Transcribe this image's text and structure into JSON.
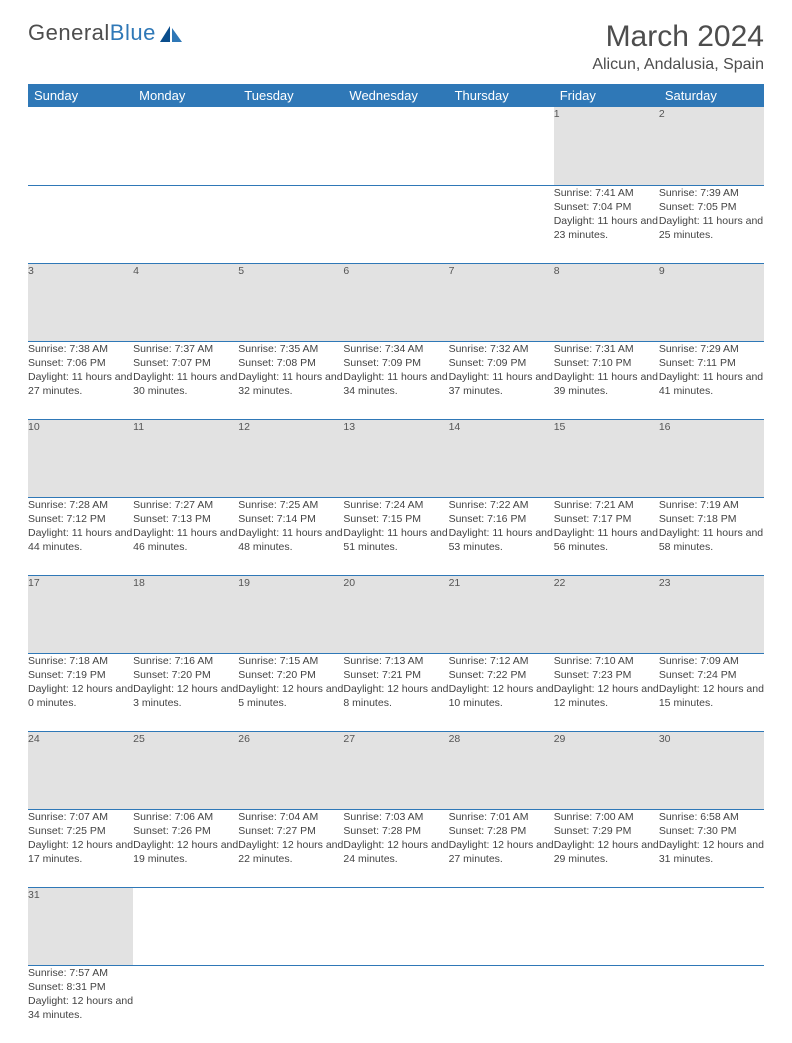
{
  "logo": {
    "text1": "General",
    "text2": "Blue"
  },
  "title": "March 2024",
  "location": "Alicun, Andalusia, Spain",
  "colors": {
    "header_bg": "#2f78b7",
    "header_fg": "#ffffff",
    "daynum_bg": "#e2e2e2",
    "row_divider": "#2f78b7",
    "text": "#434343",
    "logo_gray": "#4d4d4d",
    "logo_blue": "#2f78b7"
  },
  "weekdays": [
    "Sunday",
    "Monday",
    "Tuesday",
    "Wednesday",
    "Thursday",
    "Friday",
    "Saturday"
  ],
  "weeks": [
    [
      null,
      null,
      null,
      null,
      null,
      {
        "n": "1",
        "sr": "7:41 AM",
        "ss": "7:04 PM",
        "dl": "11 hours and 23 minutes."
      },
      {
        "n": "2",
        "sr": "7:39 AM",
        "ss": "7:05 PM",
        "dl": "11 hours and 25 minutes."
      }
    ],
    [
      {
        "n": "3",
        "sr": "7:38 AM",
        "ss": "7:06 PM",
        "dl": "11 hours and 27 minutes."
      },
      {
        "n": "4",
        "sr": "7:37 AM",
        "ss": "7:07 PM",
        "dl": "11 hours and 30 minutes."
      },
      {
        "n": "5",
        "sr": "7:35 AM",
        "ss": "7:08 PM",
        "dl": "11 hours and 32 minutes."
      },
      {
        "n": "6",
        "sr": "7:34 AM",
        "ss": "7:09 PM",
        "dl": "11 hours and 34 minutes."
      },
      {
        "n": "7",
        "sr": "7:32 AM",
        "ss": "7:09 PM",
        "dl": "11 hours and 37 minutes."
      },
      {
        "n": "8",
        "sr": "7:31 AM",
        "ss": "7:10 PM",
        "dl": "11 hours and 39 minutes."
      },
      {
        "n": "9",
        "sr": "7:29 AM",
        "ss": "7:11 PM",
        "dl": "11 hours and 41 minutes."
      }
    ],
    [
      {
        "n": "10",
        "sr": "7:28 AM",
        "ss": "7:12 PM",
        "dl": "11 hours and 44 minutes."
      },
      {
        "n": "11",
        "sr": "7:27 AM",
        "ss": "7:13 PM",
        "dl": "11 hours and 46 minutes."
      },
      {
        "n": "12",
        "sr": "7:25 AM",
        "ss": "7:14 PM",
        "dl": "11 hours and 48 minutes."
      },
      {
        "n": "13",
        "sr": "7:24 AM",
        "ss": "7:15 PM",
        "dl": "11 hours and 51 minutes."
      },
      {
        "n": "14",
        "sr": "7:22 AM",
        "ss": "7:16 PM",
        "dl": "11 hours and 53 minutes."
      },
      {
        "n": "15",
        "sr": "7:21 AM",
        "ss": "7:17 PM",
        "dl": "11 hours and 56 minutes."
      },
      {
        "n": "16",
        "sr": "7:19 AM",
        "ss": "7:18 PM",
        "dl": "11 hours and 58 minutes."
      }
    ],
    [
      {
        "n": "17",
        "sr": "7:18 AM",
        "ss": "7:19 PM",
        "dl": "12 hours and 0 minutes."
      },
      {
        "n": "18",
        "sr": "7:16 AM",
        "ss": "7:20 PM",
        "dl": "12 hours and 3 minutes."
      },
      {
        "n": "19",
        "sr": "7:15 AM",
        "ss": "7:20 PM",
        "dl": "12 hours and 5 minutes."
      },
      {
        "n": "20",
        "sr": "7:13 AM",
        "ss": "7:21 PM",
        "dl": "12 hours and 8 minutes."
      },
      {
        "n": "21",
        "sr": "7:12 AM",
        "ss": "7:22 PM",
        "dl": "12 hours and 10 minutes."
      },
      {
        "n": "22",
        "sr": "7:10 AM",
        "ss": "7:23 PM",
        "dl": "12 hours and 12 minutes."
      },
      {
        "n": "23",
        "sr": "7:09 AM",
        "ss": "7:24 PM",
        "dl": "12 hours and 15 minutes."
      }
    ],
    [
      {
        "n": "24",
        "sr": "7:07 AM",
        "ss": "7:25 PM",
        "dl": "12 hours and 17 minutes."
      },
      {
        "n": "25",
        "sr": "7:06 AM",
        "ss": "7:26 PM",
        "dl": "12 hours and 19 minutes."
      },
      {
        "n": "26",
        "sr": "7:04 AM",
        "ss": "7:27 PM",
        "dl": "12 hours and 22 minutes."
      },
      {
        "n": "27",
        "sr": "7:03 AM",
        "ss": "7:28 PM",
        "dl": "12 hours and 24 minutes."
      },
      {
        "n": "28",
        "sr": "7:01 AM",
        "ss": "7:28 PM",
        "dl": "12 hours and 27 minutes."
      },
      {
        "n": "29",
        "sr": "7:00 AM",
        "ss": "7:29 PM",
        "dl": "12 hours and 29 minutes."
      },
      {
        "n": "30",
        "sr": "6:58 AM",
        "ss": "7:30 PM",
        "dl": "12 hours and 31 minutes."
      }
    ],
    [
      {
        "n": "31",
        "sr": "7:57 AM",
        "ss": "8:31 PM",
        "dl": "12 hours and 34 minutes."
      },
      null,
      null,
      null,
      null,
      null,
      null
    ]
  ],
  "labels": {
    "sunrise": "Sunrise: ",
    "sunset": "Sunset: ",
    "daylight": "Daylight: "
  }
}
